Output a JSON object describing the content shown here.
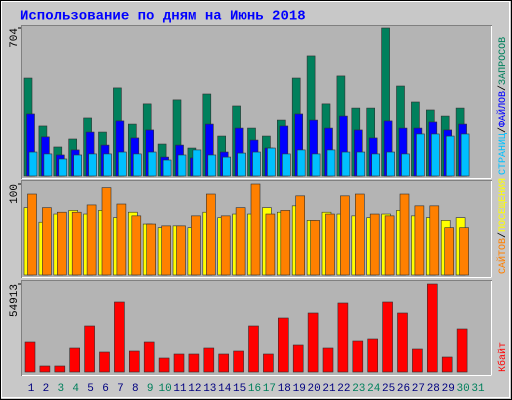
{
  "chart_data": [
    {
      "type": "bar",
      "title": "Использование по дням на Июнь 2018",
      "legend_separator": "/",
      "ylim": [
        0,
        704
      ],
      "yticks": [
        704
      ],
      "series": [
        {
          "name": "ЗАПРОСОВ",
          "color": "#00805c",
          "values": [
            466,
            238,
            138,
            176,
            276,
            209,
            419,
            247,
            343,
            152,
            362,
            133,
            390,
            190,
            333,
            228,
            190,
            266,
            466,
            571,
            343,
            476,
            323,
            323,
            704,
            428,
            352,
            314,
            285,
            323,
            null
          ]
        },
        {
          "name": "ФАЙЛОВ",
          "color": "#0000ff",
          "values": [
            295,
            186,
            100,
            124,
            209,
            147,
            262,
            181,
            219,
            90,
            147,
            86,
            247,
            114,
            228,
            171,
            133,
            238,
            295,
            266,
            228,
            285,
            219,
            181,
            262,
            228,
            228,
            257,
            219,
            247,
            null
          ]
        },
        {
          "name": "СТРАНИЦ",
          "color": "#00c0ff",
          "values": [
            114,
            105,
            81,
            100,
            105,
            105,
            114,
            105,
            114,
            76,
            100,
            124,
            100,
            90,
            109,
            114,
            133,
            105,
            124,
            105,
            124,
            114,
            114,
            105,
            114,
            105,
            200,
            200,
            190,
            200,
            null
          ]
        }
      ]
    },
    {
      "type": "bar",
      "legend_separator": "/",
      "ylim": [
        0,
        100
      ],
      "yticks": [
        100
      ],
      "series": [
        {
          "name": "ПОСЕЩЕНИЯ",
          "color": "#ffff00",
          "values": [
            74,
            58,
            67,
            71,
            67,
            71,
            63,
            69,
            56,
            52,
            54,
            52,
            69,
            63,
            67,
            67,
            74,
            69,
            76,
            60,
            69,
            67,
            65,
            63,
            67,
            71,
            65,
            63,
            60,
            63,
            null
          ]
        },
        {
          "name": "САЙТОВ",
          "color": "#ff8000",
          "values": [
            89,
            74,
            69,
            69,
            77,
            96,
            78,
            65,
            56,
            54,
            54,
            65,
            89,
            65,
            74,
            100,
            67,
            71,
            87,
            60,
            67,
            87,
            89,
            67,
            65,
            89,
            76,
            76,
            52,
            52,
            null
          ]
        }
      ]
    },
    {
      "type": "bar",
      "ylim": [
        0,
        54913
      ],
      "yticks": [
        54913
      ],
      "series": [
        {
          "name": "Кбайт",
          "color": "#ff0000",
          "values": [
            18720,
            3744,
            3744,
            14976,
            28704,
            12480,
            43680,
            13104,
            18720,
            8736,
            11232,
            11232,
            14976,
            11232,
            13104,
            28704,
            11232,
            33696,
            16848,
            36816,
            14976,
            43056,
            19344,
            20592,
            43680,
            36816,
            14352,
            54913,
            9360,
            26832,
            null
          ]
        }
      ],
      "categories": [
        "1",
        "2",
        "3",
        "4",
        "5",
        "6",
        "7",
        "8",
        "9",
        "10",
        "11",
        "12",
        "13",
        "14",
        "15",
        "16",
        "17",
        "18",
        "19",
        "20",
        "21",
        "22",
        "23",
        "24",
        "25",
        "26",
        "27",
        "28",
        "29",
        "30",
        "31"
      ],
      "category_colors": [
        "#000080",
        "#000080",
        "#00805c",
        "#00805c",
        "#000080",
        "#000080",
        "#000080",
        "#000080",
        "#00805c",
        "#00805c",
        "#000080",
        "#000080",
        "#000080",
        "#000080",
        "#000080",
        "#00805c",
        "#00805c",
        "#000080",
        "#000080",
        "#000080",
        "#000080",
        "#000080",
        "#00805c",
        "#00805c",
        "#000080",
        "#000080",
        "#000080",
        "#000080",
        "#000080",
        "#00805c",
        "#00805c"
      ]
    }
  ]
}
